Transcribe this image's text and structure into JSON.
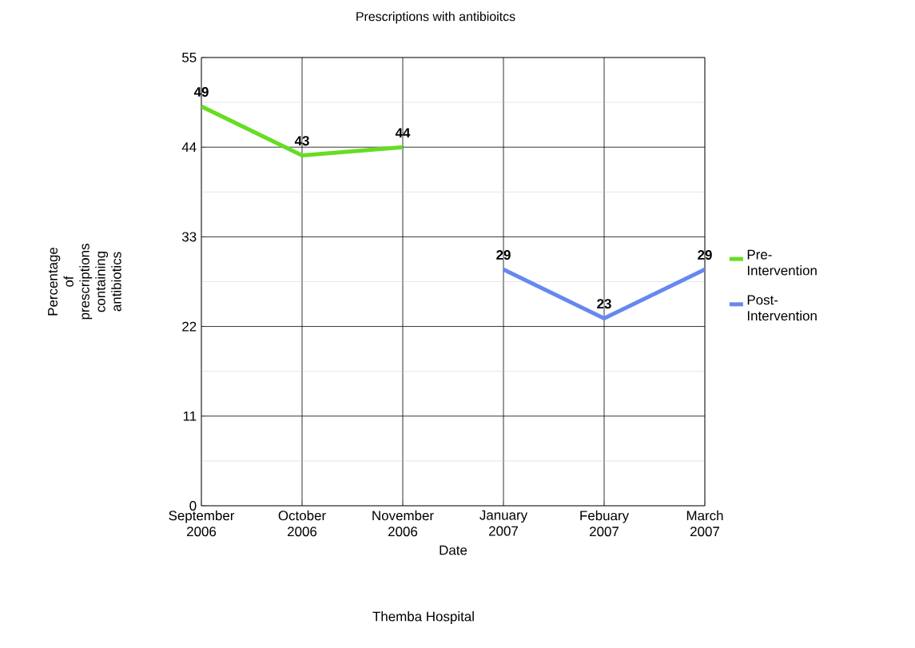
{
  "chart_data": {
    "type": "line",
    "title": "Prescriptions with antibioitcs",
    "xlabel": "Date",
    "ylabel": "Percentage of prescriptions containing antibiotics",
    "annotations": [
      "Themba Hospital"
    ],
    "categories": [
      "September 2006",
      "October 2006",
      "November 2006",
      "January 2007",
      "Febuary 2007",
      "March 2007"
    ],
    "series": [
      {
        "name": "Pre-Intervention",
        "color": "#66dd22",
        "values": [
          49,
          43,
          44,
          null,
          null,
          null
        ]
      },
      {
        "name": "Post-Intervention",
        "color": "#6688ee",
        "values": [
          null,
          null,
          null,
          29,
          23,
          29
        ]
      }
    ],
    "ylim": [
      0,
      55
    ],
    "yticks": [
      0,
      11,
      22,
      33,
      44,
      55
    ],
    "grid": true,
    "legend": "right",
    "data_labels": true,
    "marker": "none",
    "line_style": "solid"
  }
}
